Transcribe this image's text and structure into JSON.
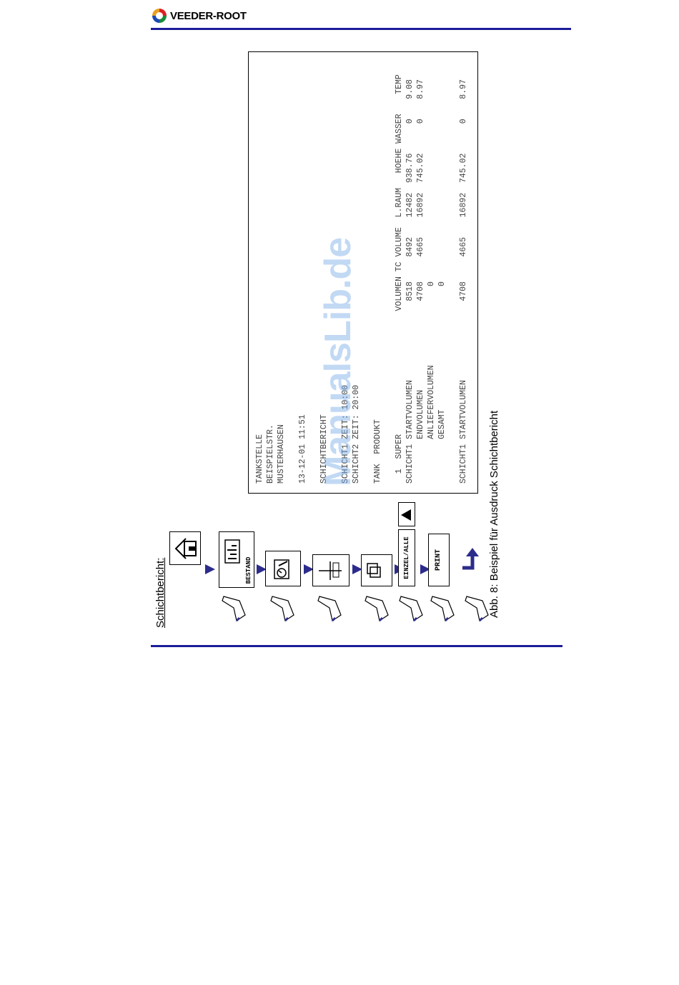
{
  "brand": {
    "name": "VEEDER-ROOT"
  },
  "section": {
    "heading": "Schichtbericht:"
  },
  "keys": {
    "bestand": "BESTAND",
    "einzel_alle": "EINZEL/ALLE",
    "print": "PRINT"
  },
  "icons": [
    "home-icon",
    "inventory-icon",
    "gauge-icon",
    "tank-icon",
    "boxes-icon",
    "play-icon",
    "return-arrow-icon"
  ],
  "printout": {
    "lines": [
      "TANKSTELLE",
      "BEISPIELSTR.",
      "MUSTERHAUSEN",
      "",
      "13-12-01 11:51",
      "",
      "SCHICHTBERICHT",
      "",
      "SCHICHT1 ZEIT: 10:00",
      "SCHICHT2 ZEIT: 20:00",
      "",
      "TANK  PRODUKT",
      "",
      "  1  SUPER                         VOLUMEN TC VOLUME  L.RAUM   HOEHE WASSER    TEMP",
      "SCHICHT1 STARTVOLUMEN                8518     8492    12482  938.76      0    9.08",
      "         ENDVOLUMEN                  4708     4665    16892  745.02      0    8.97",
      "         ANLIEFERVOLUMEN                0",
      "         GESAMT                         0",
      "",
      "SCHICHT1 STARTVOLUMEN                4708     4665    16892  745.02      0    8.97"
    ]
  },
  "watermark": "ManualsLib.de",
  "caption": "Abb. 8: Beispiel für Ausdruck Schichtbericht",
  "colors": {
    "rule": "#1c1c9c",
    "arrow": "#2c2c8c",
    "watermark": "#78aae6"
  }
}
